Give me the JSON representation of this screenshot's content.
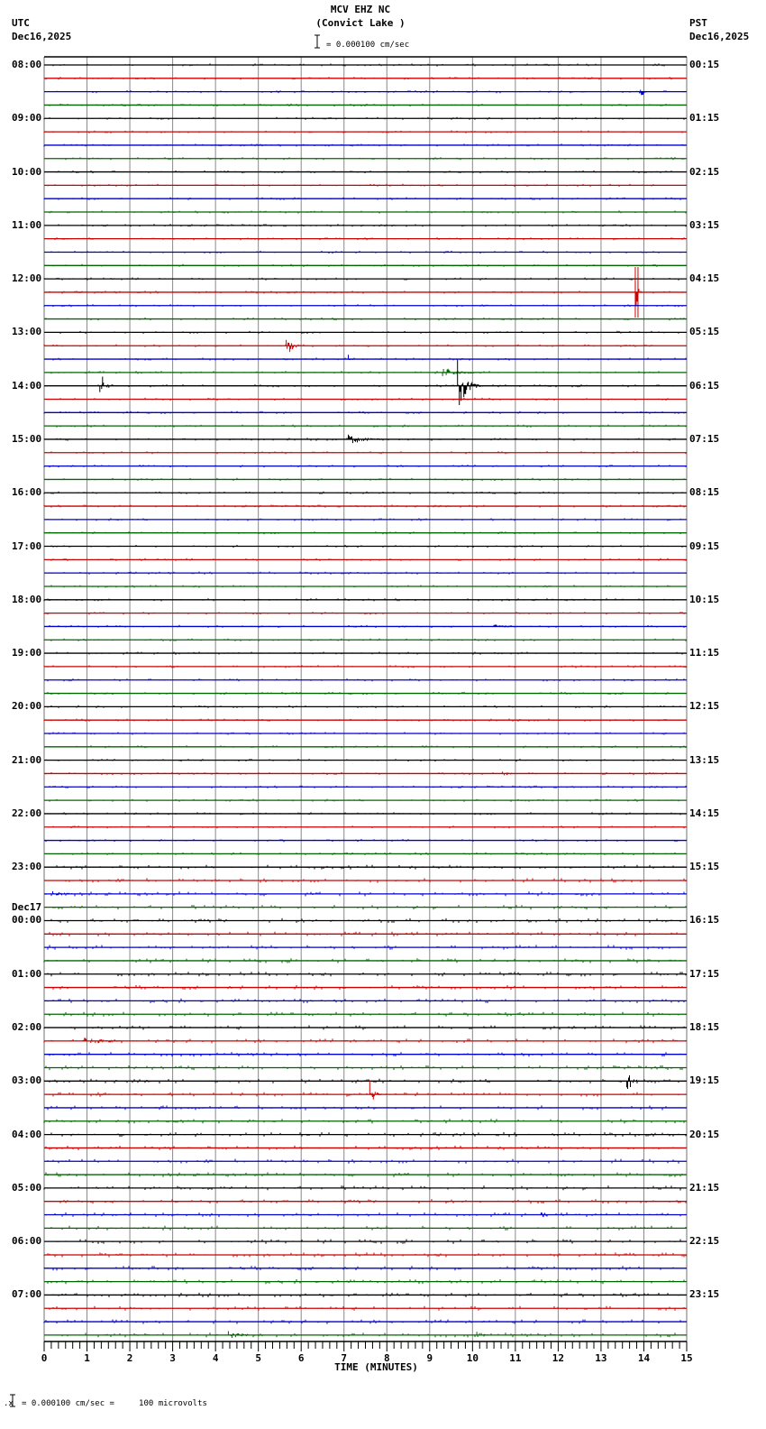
{
  "header": {
    "station_line": "MCV EHZ NC",
    "location_line": "(Convict Lake )",
    "scale_text": "= 0.000100 cm/sec",
    "left_tz": "UTC",
    "left_date": "Dec16,2025",
    "right_tz": "PST",
    "right_date": "Dec16,2025"
  },
  "footer": {
    "scale_note": "= 0.000100 cm/sec =     100 microvolts",
    "x_axis_label": "TIME (MINUTES)"
  },
  "colors": {
    "trace_cycle": [
      "#000000",
      "#cc0000",
      "#0000cc",
      "#006600"
    ],
    "grid": "#888888"
  },
  "chart_data": {
    "type": "line",
    "title": "MCV EHZ NC (Convict Lake )",
    "subtitle": "= 0.000100 cm/sec",
    "xlabel": "TIME (MINUTES)",
    "ylabel": "",
    "x_ticks": [
      0,
      1,
      2,
      3,
      4,
      5,
      6,
      7,
      8,
      9,
      10,
      11,
      12,
      13,
      14,
      15
    ],
    "xlim": [
      0,
      15
    ],
    "grid": true,
    "traces_per_hour": 4,
    "minutes_per_trace": 15,
    "left_labels": [
      {
        "row": 0,
        "label": "08:00"
      },
      {
        "row": 4,
        "label": "09:00"
      },
      {
        "row": 8,
        "label": "10:00"
      },
      {
        "row": 12,
        "label": "11:00"
      },
      {
        "row": 16,
        "label": "12:00"
      },
      {
        "row": 20,
        "label": "13:00"
      },
      {
        "row": 24,
        "label": "14:00"
      },
      {
        "row": 28,
        "label": "15:00"
      },
      {
        "row": 32,
        "label": "16:00"
      },
      {
        "row": 36,
        "label": "17:00"
      },
      {
        "row": 40,
        "label": "18:00"
      },
      {
        "row": 44,
        "label": "19:00"
      },
      {
        "row": 48,
        "label": "20:00"
      },
      {
        "row": 52,
        "label": "21:00"
      },
      {
        "row": 56,
        "label": "22:00"
      },
      {
        "row": 60,
        "label": "23:00"
      },
      {
        "row": 64,
        "label": "00:00",
        "date": "Dec17"
      },
      {
        "row": 68,
        "label": "01:00"
      },
      {
        "row": 72,
        "label": "02:00"
      },
      {
        "row": 76,
        "label": "03:00"
      },
      {
        "row": 80,
        "label": "04:00"
      },
      {
        "row": 84,
        "label": "05:00"
      },
      {
        "row": 88,
        "label": "06:00"
      },
      {
        "row": 92,
        "label": "07:00"
      }
    ],
    "right_labels": [
      {
        "row": 0,
        "label": "00:15"
      },
      {
        "row": 4,
        "label": "01:15"
      },
      {
        "row": 8,
        "label": "02:15"
      },
      {
        "row": 12,
        "label": "03:15"
      },
      {
        "row": 16,
        "label": "04:15"
      },
      {
        "row": 20,
        "label": "05:15"
      },
      {
        "row": 24,
        "label": "06:15"
      },
      {
        "row": 28,
        "label": "07:15"
      },
      {
        "row": 32,
        "label": "08:15"
      },
      {
        "row": 36,
        "label": "09:15"
      },
      {
        "row": 40,
        "label": "10:15"
      },
      {
        "row": 44,
        "label": "11:15"
      },
      {
        "row": 48,
        "label": "12:15"
      },
      {
        "row": 52,
        "label": "13:15"
      },
      {
        "row": 56,
        "label": "14:15"
      },
      {
        "row": 60,
        "label": "15:15"
      },
      {
        "row": 64,
        "label": "16:15"
      },
      {
        "row": 68,
        "label": "17:15"
      },
      {
        "row": 72,
        "label": "18:15"
      },
      {
        "row": 76,
        "label": "19:15"
      },
      {
        "row": 80,
        "label": "20:15"
      },
      {
        "row": 84,
        "label": "21:15"
      },
      {
        "row": 88,
        "label": "22:15"
      },
      {
        "row": 92,
        "label": "23:15"
      }
    ],
    "n_traces": 96,
    "events": [
      {
        "row": 2,
        "minute": 13.9,
        "amp": 9,
        "dur": 0.3
      },
      {
        "row": 17,
        "minute": 13.8,
        "amp": 28,
        "dur": 0.15,
        "clipped": true
      },
      {
        "row": 21,
        "minute": 5.65,
        "amp": 16,
        "dur": 0.4
      },
      {
        "row": 22,
        "minute": 7.1,
        "amp": 5,
        "dur": 0.2
      },
      {
        "row": 23,
        "minute": 9.3,
        "amp": 6,
        "dur": 1.5
      },
      {
        "row": 24,
        "minute": 1.3,
        "amp": 18,
        "dur": 0.4
      },
      {
        "row": 24,
        "minute": 9.65,
        "amp": 30,
        "dur": 0.6
      },
      {
        "row": 28,
        "minute": 7.1,
        "amp": 6,
        "dur": 1.4
      },
      {
        "row": 42,
        "minute": 10.5,
        "amp": 3,
        "dur": 1.0
      },
      {
        "row": 53,
        "minute": 10.7,
        "amp": 3,
        "dur": 0.6
      },
      {
        "row": 53,
        "minute": 14.1,
        "amp": 3,
        "dur": 0.5
      },
      {
        "row": 62,
        "minute": 0.2,
        "amp": 4,
        "dur": 1.0
      },
      {
        "row": 73,
        "minute": 0.9,
        "amp": 4,
        "dur": 2.3
      },
      {
        "row": 77,
        "minute": 7.6,
        "amp": 18,
        "dur": 0.3
      },
      {
        "row": 76,
        "minute": 13.6,
        "amp": 22,
        "dur": 0.3
      },
      {
        "row": 86,
        "minute": 11.6,
        "amp": 4,
        "dur": 0.5
      },
      {
        "row": 95,
        "minute": 4.3,
        "amp": 5,
        "dur": 1.2
      },
      {
        "row": 95,
        "minute": 10.1,
        "amp": 5,
        "dur": 0.5
      }
    ]
  }
}
